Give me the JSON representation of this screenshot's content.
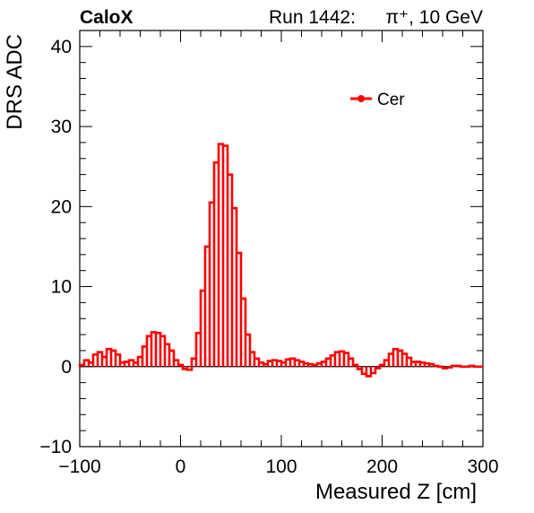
{
  "header": {
    "experiment": "CaloX",
    "run_label": "Run 1442:",
    "particle": "π⁺, 10 GeV"
  },
  "chart_data": {
    "type": "line",
    "style": "step-histogram",
    "title": "",
    "xlabel": "Measured Z [cm]",
    "ylabel": "DRS ADC",
    "xlim": [
      -100,
      300
    ],
    "ylim": [
      -10,
      42
    ],
    "xticks": [
      -100,
      0,
      100,
      200,
      300
    ],
    "yticks": [
      -10,
      0,
      10,
      20,
      30,
      40
    ],
    "xtick_labels": [
      "−100",
      "0",
      "100",
      "200",
      "300"
    ],
    "ytick_labels": [
      "−10",
      "0",
      "10",
      "20",
      "30",
      "40"
    ],
    "grid": false,
    "legend_position": "top-right",
    "series": [
      {
        "name": "Cer",
        "color": "#ff0000",
        "bin_width": 4.444,
        "x_start": -100,
        "values": [
          0.2,
          0.8,
          0.5,
          1.5,
          1.8,
          1.2,
          2.2,
          2.0,
          1.5,
          0.5,
          0.6,
          0.8,
          0.5,
          1.2,
          2.5,
          3.8,
          4.3,
          4.2,
          3.8,
          2.8,
          2.0,
          0.8,
          0.2,
          -0.3,
          -0.4,
          1.0,
          4.2,
          9.5,
          15.0,
          20.5,
          25.5,
          27.8,
          27.6,
          24.0,
          19.8,
          14.2,
          8.5,
          4.0,
          1.8,
          1.0,
          0.5,
          0.3,
          0.7,
          0.8,
          0.7,
          0.5,
          0.9,
          1.0,
          0.8,
          0.6,
          0.4,
          0.3,
          0.2,
          0.4,
          0.6,
          1.0,
          1.4,
          1.8,
          1.9,
          1.7,
          1.0,
          0.2,
          -0.3,
          -0.9,
          -1.2,
          -0.8,
          -0.2,
          0.2,
          0.8,
          1.6,
          2.2,
          2.0,
          1.6,
          1.1,
          0.6,
          0.6,
          0.5,
          0.4,
          0.3,
          0.1,
          0.0,
          -0.2,
          -0.1,
          0.1,
          0.1,
          0.0,
          0.0,
          0.1,
          0.0,
          0.0
        ]
      }
    ]
  },
  "colors": {
    "series": "#ff0000",
    "axes": "#000000",
    "background": "#ffffff"
  }
}
